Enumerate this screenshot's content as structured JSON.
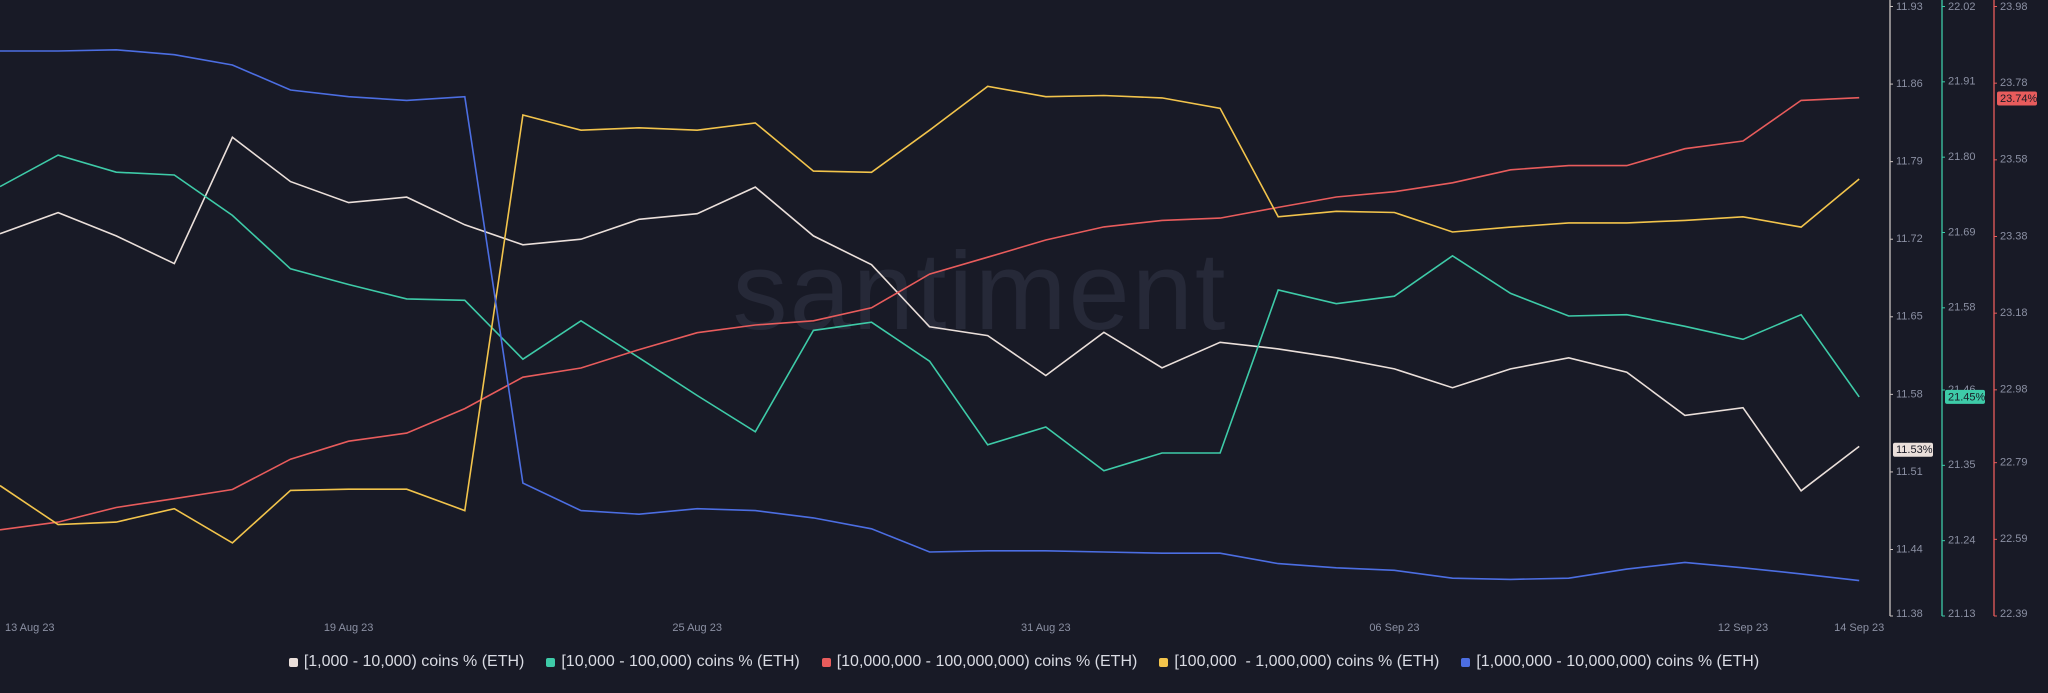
{
  "chart_data": {
    "type": "line",
    "watermark": "santiment",
    "categories": [
      "13 Aug 23",
      null,
      null,
      null,
      null,
      null,
      "19 Aug 23",
      null,
      null,
      null,
      null,
      null,
      "25 Aug 23",
      null,
      null,
      null,
      null,
      null,
      "31 Aug 23",
      null,
      null,
      null,
      null,
      null,
      "06 Sep 23",
      null,
      null,
      null,
      null,
      null,
      "12 Sep 23",
      null,
      "14 Sep 23"
    ],
    "ylim": [
      11.38,
      11.93
    ],
    "yticks": [
      11.93,
      11.86,
      11.79,
      11.72,
      11.65,
      11.58,
      11.51,
      11.44,
      11.38
    ],
    "y2lim": [
      21.13,
      22.02
    ],
    "y2ticks": [
      22.02,
      21.91,
      {
        "value": 21.8,
        "label": "21.80"
      },
      21.69,
      21.58,
      21.46,
      21.35,
      21.24,
      21.13
    ],
    "y3lim": [
      22.39,
      23.98
    ],
    "y3ticks": [
      23.98,
      23.78,
      23.58,
      23.38,
      23.18,
      22.98,
      22.79,
      22.59,
      22.39
    ],
    "series": [
      {
        "name": "[1,000 - 10,000) coins % (ETH)",
        "color": "#eadfda",
        "axis": "y",
        "badge": {
          "value": 11.53,
          "label": "11.53%"
        },
        "values": [
          11.725,
          11.744,
          11.723,
          11.698,
          11.812,
          11.772,
          11.753,
          11.758,
          11.733,
          11.715,
          11.72,
          11.738,
          11.743,
          11.767,
          11.723,
          11.697,
          11.641,
          11.633,
          11.597,
          11.636,
          11.604,
          11.627,
          11.621,
          11.613,
          11.603,
          11.586,
          11.603,
          11.613,
          11.6,
          11.561,
          11.568,
          11.493,
          11.533
        ]
      },
      {
        "name": "[10,000 - 100,000) coins % (ETH)",
        "color": "#3ecba8",
        "axis": "y2",
        "badge": {
          "value": 21.45,
          "label": "21.45%"
        },
        "values": [
          21.757,
          21.803,
          21.778,
          21.774,
          21.715,
          21.637,
          21.614,
          21.593,
          21.591,
          21.505,
          21.561,
          21.507,
          21.452,
          21.399,
          21.547,
          21.559,
          21.502,
          21.38,
          21.406,
          21.342,
          21.368,
          21.368,
          21.606,
          21.586,
          21.597,
          21.656,
          21.601,
          21.568,
          21.57,
          21.553,
          21.534,
          21.57,
          21.45
        ]
      },
      {
        "name": "[10,000,000 - 100,000,000) coins % (ETH)",
        "color": "#e85c5c",
        "axis": "y3",
        "badge": {
          "value": 23.74,
          "label": "23.74%"
        },
        "values": [
          22.615,
          22.635,
          22.673,
          22.696,
          22.72,
          22.799,
          22.846,
          22.867,
          22.931,
          23.013,
          23.037,
          23.085,
          23.129,
          23.149,
          23.16,
          23.194,
          23.282,
          23.326,
          23.371,
          23.405,
          23.422,
          23.428,
          23.456,
          23.483,
          23.497,
          23.52,
          23.554,
          23.565,
          23.565,
          23.609,
          23.629,
          23.735,
          23.742
        ]
      },
      {
        "name": "[100,000  - 1,000,000) coins % (ETH)",
        "color": "#f2c44c",
        "ylim": [
          0,
          1
        ],
        "values": [
          0.214,
          0.15,
          0.154,
          0.176,
          0.12,
          0.206,
          0.208,
          0.208,
          0.173,
          0.822,
          0.797,
          0.801,
          0.797,
          0.809,
          0.73,
          0.728,
          0.797,
          0.869,
          0.852,
          0.854,
          0.85,
          0.833,
          0.655,
          0.664,
          0.662,
          0.63,
          0.638,
          0.645,
          0.645,
          0.649,
          0.655,
          0.638,
          0.717
        ]
      },
      {
        "name": "[1,000,000 - 10,000,000) coins % (ETH)",
        "color": "#4c6ee2",
        "ylim": [
          0,
          1
        ],
        "values": [
          0.927,
          0.927,
          0.929,
          0.921,
          0.904,
          0.863,
          0.852,
          0.846,
          0.852,
          0.218,
          0.173,
          0.167,
          0.176,
          0.173,
          0.161,
          0.143,
          0.105,
          0.107,
          0.107,
          0.105,
          0.103,
          0.103,
          0.086,
          0.079,
          0.075,
          0.062,
          0.06,
          0.062,
          0.077,
          0.088,
          0.079,
          0.069,
          0.058
        ]
      }
    ]
  }
}
